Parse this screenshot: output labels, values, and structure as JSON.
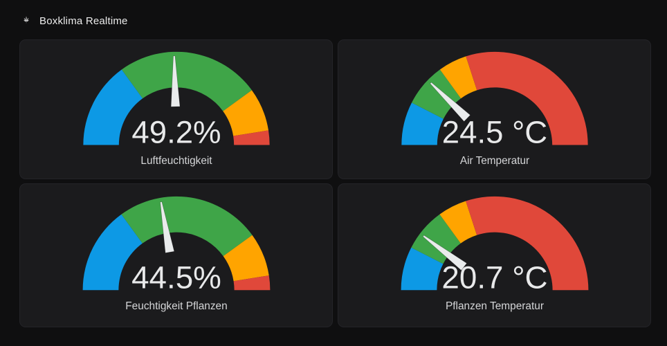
{
  "header": {
    "title": "Boxklima Realtime",
    "icon": "cannabis-leaf"
  },
  "theme": {
    "page_bg": "#0f0f10",
    "panel_bg": "#1b1b1d",
    "panel_border": "#242428",
    "value_color": "#e8e9ea",
    "label_color": "#d5d6d8",
    "needle_color": "#e9ebec"
  },
  "chart_data": [
    {
      "type": "gauge",
      "title": "Luftfeuchtigkeit",
      "value": 49.2,
      "display": "49.2%",
      "unit": "%",
      "min": 0,
      "max": 100,
      "segments": [
        {
          "from": 0,
          "to": 30,
          "color": "#0d99e5"
        },
        {
          "from": 30,
          "to": 80,
          "color": "#3fa548"
        },
        {
          "from": 80,
          "to": 95,
          "color": "#ffa400"
        },
        {
          "from": 95,
          "to": 100,
          "color": "#e0483a"
        }
      ]
    },
    {
      "type": "gauge",
      "title": "Air Temperatur",
      "value": 24.5,
      "display": "24.5 °C",
      "unit": "°C",
      "min": 0,
      "max": 100,
      "segments": [
        {
          "from": 0,
          "to": 15,
          "color": "#0d99e5"
        },
        {
          "from": 15,
          "to": 30,
          "color": "#3fa548"
        },
        {
          "from": 30,
          "to": 40,
          "color": "#ffa400"
        },
        {
          "from": 40,
          "to": 100,
          "color": "#e0483a"
        }
      ]
    },
    {
      "type": "gauge",
      "title": "Feuchtigkeit Pflanzen",
      "value": 44.5,
      "display": "44.5%",
      "unit": "%",
      "min": 0,
      "max": 100,
      "segments": [
        {
          "from": 0,
          "to": 30,
          "color": "#0d99e5"
        },
        {
          "from": 30,
          "to": 80,
          "color": "#3fa548"
        },
        {
          "from": 80,
          "to": 95,
          "color": "#ffa400"
        },
        {
          "from": 95,
          "to": 100,
          "color": "#e0483a"
        }
      ]
    },
    {
      "type": "gauge",
      "title": "Pflanzen Temperatur",
      "value": 20.7,
      "display": "20.7 °C",
      "unit": "°C",
      "min": 0,
      "max": 100,
      "segments": [
        {
          "from": 0,
          "to": 15,
          "color": "#0d99e5"
        },
        {
          "from": 15,
          "to": 30,
          "color": "#3fa548"
        },
        {
          "from": 30,
          "to": 40,
          "color": "#ffa400"
        },
        {
          "from": 40,
          "to": 100,
          "color": "#e0483a"
        }
      ]
    }
  ]
}
